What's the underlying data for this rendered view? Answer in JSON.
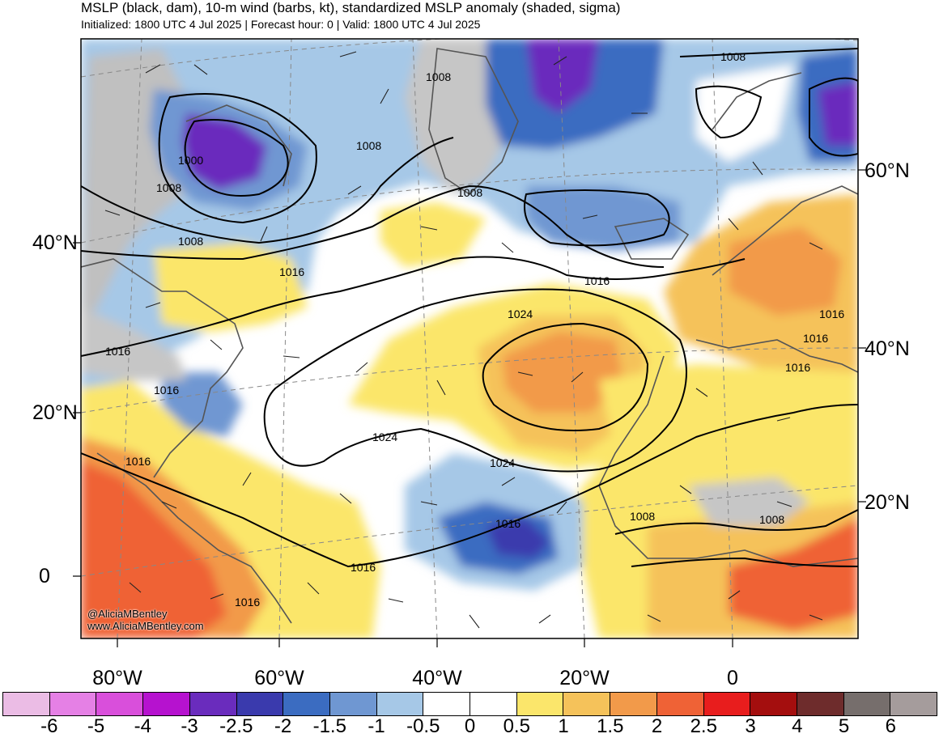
{
  "header": {
    "title": "MSLP (black, dam), 10-m wind (barbs, kt), standardized MSLP anomaly (shaded, sigma)",
    "subtitle": "Initialized: 1800 UTC 4 Jul 2025 | Forecast hour: 0 | Valid: 1800 UTC 4 Jul 2025"
  },
  "map": {
    "lat_labels_left": [
      "40°N",
      "20°N",
      "0"
    ],
    "lat_labels_right": [
      "60°N",
      "40°N",
      "20°N"
    ],
    "lon_labels": [
      "80°W",
      "60°W",
      "40°W",
      "20°W",
      "0"
    ],
    "isobar_labels": [
      "1000",
      "1008",
      "1008",
      "1008",
      "1008",
      "1008",
      "1016",
      "1016",
      "1016",
      "1024",
      "1024",
      "1024",
      "1016",
      "1016",
      "1016",
      "1016",
      "1016",
      "1016",
      "1016",
      "1016",
      "1008",
      "1008",
      "1008"
    ],
    "credits": [
      "@AliciaMBentley",
      "www.AliciaMBentley.com"
    ]
  },
  "colorbar": {
    "labels": [
      "-6",
      "-5",
      "-4",
      "-3",
      "-2.5",
      "-2",
      "-1.5",
      "-1",
      "-0.5",
      "0",
      "0.5",
      "1",
      "1.5",
      "2",
      "2.5",
      "3",
      "4",
      "5",
      "6"
    ],
    "colors": [
      "#ebbce5",
      "#e580e5",
      "#d94fdb",
      "#b612cf",
      "#6a2cbd",
      "#3a3aad",
      "#3b6cc1",
      "#6f97d2",
      "#a6c8e7",
      "#ffffff",
      "#ffffff",
      "#fbe66b",
      "#f5c25a",
      "#f29a4a",
      "#ef6236",
      "#e81d1d",
      "#a40e0e",
      "#6e2c2c",
      "#766e6c",
      "#a59c9c"
    ]
  }
}
